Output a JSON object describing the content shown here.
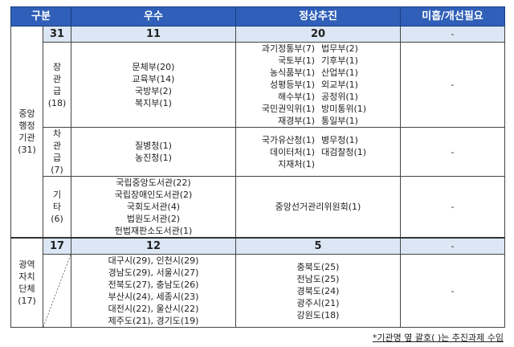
{
  "header": {
    "category": "구분",
    "excellent": "우수",
    "normal": "정상추진",
    "poor": "미흡/개선필요"
  },
  "central": {
    "label": "중앙 행정 기관",
    "count": "(31)",
    "summary": {
      "total": "31",
      "excellent": "11",
      "normal": "20",
      "poor": "-"
    },
    "ministerial": {
      "label": "장 관 급",
      "count": "(18)",
      "excellent": [
        "문체부(20)",
        "교육부(14)",
        "국방부(2)",
        "복지부(1)"
      ],
      "normal": [
        "과기정통부(7)",
        "법무부(2)",
        "국토부(1)",
        "기후부(1)",
        "농식품부(1)",
        "산업부(1)",
        "성평등부(1)",
        "외교부(1)",
        "해수부(1)",
        "공정위(1)",
        "국민권익위(1)",
        "방미통위(1)",
        "재경부(1)",
        "통일부(1)"
      ],
      "poor": "-"
    },
    "vice": {
      "label": "차 관 급",
      "count": "(7)",
      "excellent": [
        "질병청(1)",
        "농진청(1)"
      ],
      "normal": [
        "국가유산청(1)",
        "병무청(1)",
        "데이터처(1)",
        "대검찰청(1)",
        "지재처(1)",
        ""
      ],
      "poor": "-"
    },
    "other": {
      "label": "기 타",
      "count": "(6)",
      "excellent": [
        "국립중앙도서관(22)",
        "국립장애인도서관(2)",
        "국회도서관(4)",
        "법원도서관(2)",
        "헌법재판소도서관(1)"
      ],
      "normal": [
        "중앙선거관리위원회(1)"
      ],
      "poor": "-"
    }
  },
  "regional": {
    "label": "광역 자치 단체",
    "count": "(17)",
    "summary": {
      "total": "17",
      "excellent": "12",
      "normal": "5",
      "poor": "-"
    },
    "excellent": [
      "대구시(29), 인천시(29)",
      "경남도(29), 서울시(27)",
      "전북도(27), 충남도(26)",
      "부산시(24), 세종시(23)",
      "대전시(22), 울산시(22)",
      "제주도(21), 경기도(19)"
    ],
    "normal": [
      "충북도(25)",
      "전남도(25)",
      "경북도(24)",
      "광주시(21)",
      "강원도(18)"
    ],
    "poor": "-"
  },
  "footnote": "*기관명 옆 괄호( )는 추진과제 수임",
  "colors": {
    "header_bg": "#2f5fb8",
    "summary_bg": "#dce6f5"
  }
}
